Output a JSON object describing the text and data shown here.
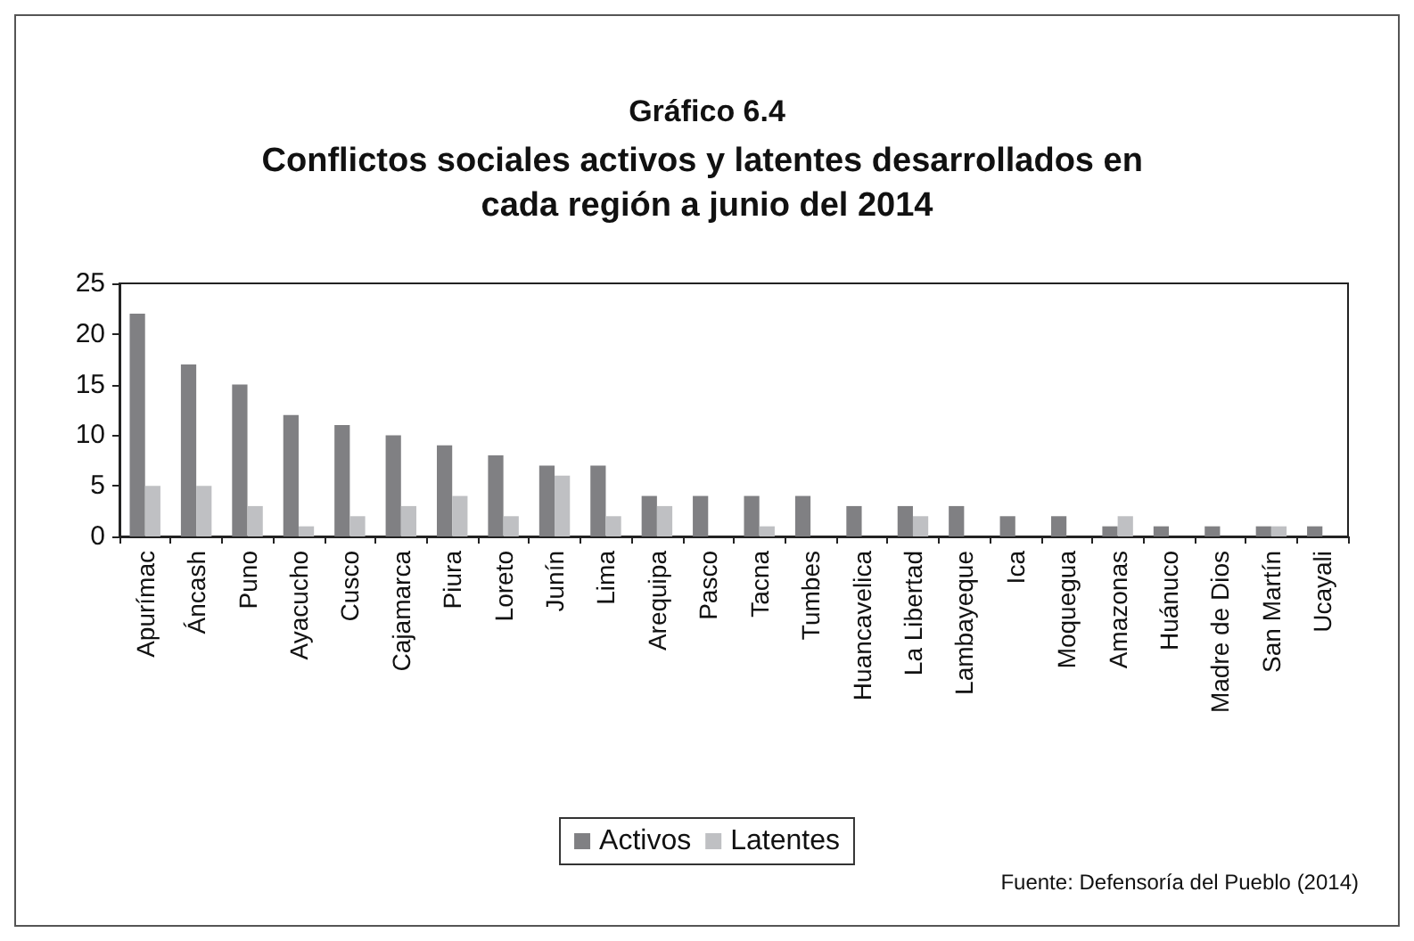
{
  "chart_data": {
    "type": "bar",
    "title": "Gráfico 6.4",
    "subtitle": "Conflictos sociales activos y latentes desarrollados en cada región a junio del 2014",
    "categories": [
      "Apurímac",
      "Áncash",
      "Puno",
      "Ayacucho",
      "Cusco",
      "Cajamarca",
      "Piura",
      "Loreto",
      "Junín",
      "Lima",
      "Arequipa",
      "Pasco",
      "Tacna",
      "Tumbes",
      "Huancavelica",
      "La Libertad",
      "Lambayeque",
      "Ica",
      "Moquegua",
      "Amazonas",
      "Huánuco",
      "Madre de Dios",
      "San Martín",
      "Ucayali"
    ],
    "series": [
      {
        "name": "Activos",
        "color": "#808083",
        "values": [
          22,
          17,
          15,
          12,
          11,
          10,
          9,
          8,
          7,
          7,
          4,
          4,
          4,
          4,
          3,
          3,
          3,
          2,
          2,
          1,
          1,
          1,
          1,
          1
        ]
      },
      {
        "name": "Latentes",
        "color": "#bfc0c3",
        "values": [
          5,
          5,
          3,
          1,
          2,
          3,
          4,
          2,
          6,
          2,
          3,
          0,
          1,
          0,
          0,
          2,
          0,
          0,
          0,
          2,
          0,
          0,
          1,
          0
        ]
      }
    ],
    "ylim": [
      0,
      25
    ],
    "yticks": [
      0,
      5,
      10,
      15,
      20,
      25
    ],
    "grid": false,
    "legend": "bottom",
    "annotations": [
      "Fuente: Defensoría del Pueblo (2014)"
    ]
  }
}
